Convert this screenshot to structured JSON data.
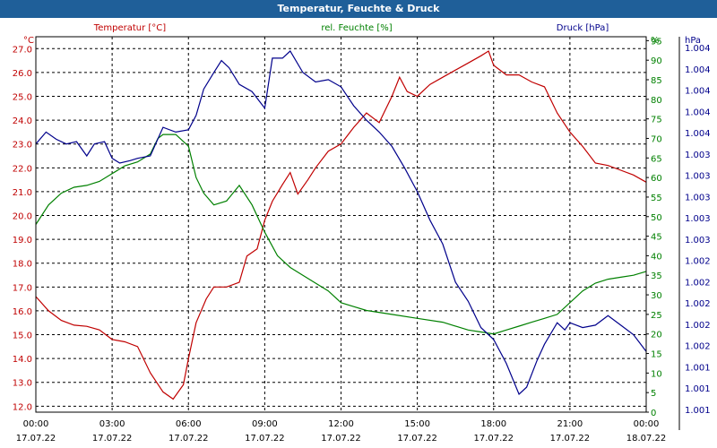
{
  "window": {
    "title": "Temperatur, Feuchte & Druck"
  },
  "chart_data": {
    "type": "line",
    "title": "Temperatur, Feuchte & Druck",
    "x_labels": [
      [
        "00:00",
        "17.07.22"
      ],
      [
        "03:00",
        "17.07.22"
      ],
      [
        "06:00",
        "17.07.22"
      ],
      [
        "09:00",
        "17.07.22"
      ],
      [
        "12:00",
        "17.07.22"
      ],
      [
        "15:00",
        "17.07.22"
      ],
      [
        "18:00",
        "17.07.22"
      ],
      [
        "21:00",
        "17.07.22"
      ],
      [
        "00:00",
        "18.07.22"
      ]
    ],
    "x_range_hours": [
      0,
      24
    ],
    "grid": true,
    "axes": {
      "temperature": {
        "label": "Temperatur [°C]",
        "unit": "°C",
        "color": "#c00000",
        "min": 11.75,
        "max": 27.5,
        "ticks": [
          "12.0",
          "13.0",
          "14.0",
          "15.0",
          "16.0",
          "17.0",
          "18.0",
          "19.0",
          "20.0",
          "21.0",
          "22.0",
          "23.0",
          "24.0",
          "25.0",
          "26.0",
          "27.0"
        ]
      },
      "humidity": {
        "label": "rel. Feuchte [%]",
        "unit": "%",
        "color": "#008000",
        "min": 0,
        "max": 96,
        "ticks": [
          "0",
          "5",
          "10",
          "15",
          "20",
          "25",
          "30",
          "35",
          "40",
          "45",
          "50",
          "55",
          "60",
          "65",
          "70",
          "75",
          "80",
          "85",
          "90",
          "95"
        ]
      },
      "pressure": {
        "label": "Druck [hPa]",
        "unit": "hPa",
        "color": "#00008b",
        "ticks": [
          "1.001",
          "1.001",
          "1.001",
          "1.002",
          "1.002",
          "1.002",
          "1.002",
          "1.002",
          "1.003",
          "1.003",
          "1.003",
          "1.003",
          "1.003",
          "1.004",
          "1.004",
          "1.004",
          "1.004",
          "1.004"
        ]
      }
    },
    "series": [
      {
        "name": "Temperatur [°C]",
        "axis": "temperature",
        "color": "#c00000",
        "points": [
          [
            0,
            16.6
          ],
          [
            0.5,
            16.0
          ],
          [
            1,
            15.6
          ],
          [
            1.5,
            15.4
          ],
          [
            2,
            15.35
          ],
          [
            2.5,
            15.2
          ],
          [
            3,
            14.8
          ],
          [
            3.5,
            14.7
          ],
          [
            4,
            14.5
          ],
          [
            4.5,
            13.4
          ],
          [
            5,
            12.6
          ],
          [
            5.4,
            12.3
          ],
          [
            5.8,
            12.9
          ],
          [
            6,
            14.0
          ],
          [
            6.3,
            15.5
          ],
          [
            6.7,
            16.5
          ],
          [
            7,
            17.0
          ],
          [
            7.5,
            17.0
          ],
          [
            8,
            17.2
          ],
          [
            8.3,
            18.3
          ],
          [
            8.7,
            18.6
          ],
          [
            9,
            19.8
          ],
          [
            9.3,
            20.6
          ],
          [
            9.7,
            21.3
          ],
          [
            10,
            21.8
          ],
          [
            10.3,
            20.9
          ],
          [
            10.7,
            21.5
          ],
          [
            11,
            22.0
          ],
          [
            11.5,
            22.7
          ],
          [
            12,
            23.0
          ],
          [
            12.5,
            23.7
          ],
          [
            13,
            24.3
          ],
          [
            13.5,
            23.9
          ],
          [
            14,
            25.0
          ],
          [
            14.3,
            25.8
          ],
          [
            14.6,
            25.2
          ],
          [
            15,
            25.0
          ],
          [
            15.5,
            25.5
          ],
          [
            16,
            25.8
          ],
          [
            16.5,
            26.1
          ],
          [
            17,
            26.4
          ],
          [
            17.5,
            26.7
          ],
          [
            17.8,
            26.9
          ],
          [
            18,
            26.3
          ],
          [
            18.5,
            25.9
          ],
          [
            19,
            25.9
          ],
          [
            19.5,
            25.6
          ],
          [
            20,
            25.4
          ],
          [
            20.5,
            24.3
          ],
          [
            21,
            23.5
          ],
          [
            21.5,
            22.9
          ],
          [
            22,
            22.2
          ],
          [
            22.5,
            22.1
          ],
          [
            23,
            21.9
          ],
          [
            23.5,
            21.7
          ],
          [
            24,
            21.4
          ]
        ]
      },
      {
        "name": "rel. Feuchte [%]",
        "axis": "humidity",
        "color": "#008000",
        "points": [
          [
            0,
            48
          ],
          [
            0.5,
            53
          ],
          [
            1,
            56
          ],
          [
            1.5,
            57.5
          ],
          [
            2,
            58
          ],
          [
            2.5,
            59
          ],
          [
            3,
            61
          ],
          [
            3.5,
            63
          ],
          [
            4,
            64
          ],
          [
            4.5,
            66
          ],
          [
            4.8,
            70
          ],
          [
            5,
            71
          ],
          [
            5.5,
            71
          ],
          [
            6,
            68
          ],
          [
            6.3,
            60
          ],
          [
            6.6,
            56
          ],
          [
            7,
            53
          ],
          [
            7.5,
            54
          ],
          [
            8,
            58
          ],
          [
            8.5,
            53
          ],
          [
            9,
            46
          ],
          [
            9.5,
            40
          ],
          [
            10,
            37
          ],
          [
            10.5,
            35
          ],
          [
            11,
            33
          ],
          [
            11.5,
            31
          ],
          [
            12,
            28
          ],
          [
            12.5,
            27
          ],
          [
            13,
            26
          ],
          [
            14,
            25
          ],
          [
            15,
            24
          ],
          [
            16,
            23
          ],
          [
            17,
            21
          ],
          [
            17.5,
            20.5
          ],
          [
            18,
            20
          ],
          [
            18.5,
            21
          ],
          [
            19,
            22
          ],
          [
            19.5,
            23
          ],
          [
            20,
            24
          ],
          [
            20.5,
            25
          ],
          [
            21,
            28
          ],
          [
            21.5,
            31
          ],
          [
            22,
            33
          ],
          [
            22.5,
            34
          ],
          [
            23,
            34.5
          ],
          [
            23.5,
            35
          ],
          [
            24,
            36
          ]
        ]
      },
      {
        "name": "Druck [hPa]",
        "axis": "pressure",
        "color": "#00008b",
        "points": [
          [
            0,
            23.0
          ],
          [
            0.4,
            23.5
          ],
          [
            0.8,
            23.2
          ],
          [
            1.2,
            23.0
          ],
          [
            1.6,
            23.1
          ],
          [
            2,
            22.5
          ],
          [
            2.3,
            23.0
          ],
          [
            2.7,
            23.1
          ],
          [
            3,
            22.4
          ],
          [
            3.3,
            22.2
          ],
          [
            3.7,
            22.3
          ],
          [
            4,
            22.4
          ],
          [
            4.5,
            22.5
          ],
          [
            5,
            23.7
          ],
          [
            5.5,
            23.5
          ],
          [
            6,
            23.6
          ],
          [
            6.3,
            24.2
          ],
          [
            6.6,
            25.3
          ],
          [
            7,
            26.0
          ],
          [
            7.3,
            26.5
          ],
          [
            7.6,
            26.2
          ],
          [
            8,
            25.5
          ],
          [
            8.5,
            25.2
          ],
          [
            9,
            24.5
          ],
          [
            9.3,
            26.6
          ],
          [
            9.7,
            26.6
          ],
          [
            10,
            26.9
          ],
          [
            10.5,
            26.0
          ],
          [
            11,
            25.6
          ],
          [
            11.5,
            25.7
          ],
          [
            12,
            25.4
          ],
          [
            12.5,
            24.6
          ],
          [
            13,
            24.0
          ],
          [
            13.5,
            23.5
          ],
          [
            14,
            22.9
          ],
          [
            14.5,
            22.0
          ],
          [
            15,
            21.0
          ],
          [
            15.5,
            19.8
          ],
          [
            16,
            18.8
          ],
          [
            16.5,
            17.2
          ],
          [
            17,
            16.4
          ],
          [
            17.5,
            15.3
          ],
          [
            18,
            14.8
          ],
          [
            18.5,
            13.8
          ],
          [
            19,
            12.5
          ],
          [
            19.3,
            12.8
          ],
          [
            19.7,
            13.9
          ],
          [
            20,
            14.6
          ],
          [
            20.5,
            15.5
          ],
          [
            20.8,
            15.2
          ],
          [
            21,
            15.5
          ],
          [
            21.5,
            15.3
          ],
          [
            22,
            15.4
          ],
          [
            22.5,
            15.8
          ],
          [
            23,
            15.4
          ],
          [
            23.5,
            15.0
          ],
          [
            24,
            14.3
          ]
        ]
      }
    ]
  }
}
